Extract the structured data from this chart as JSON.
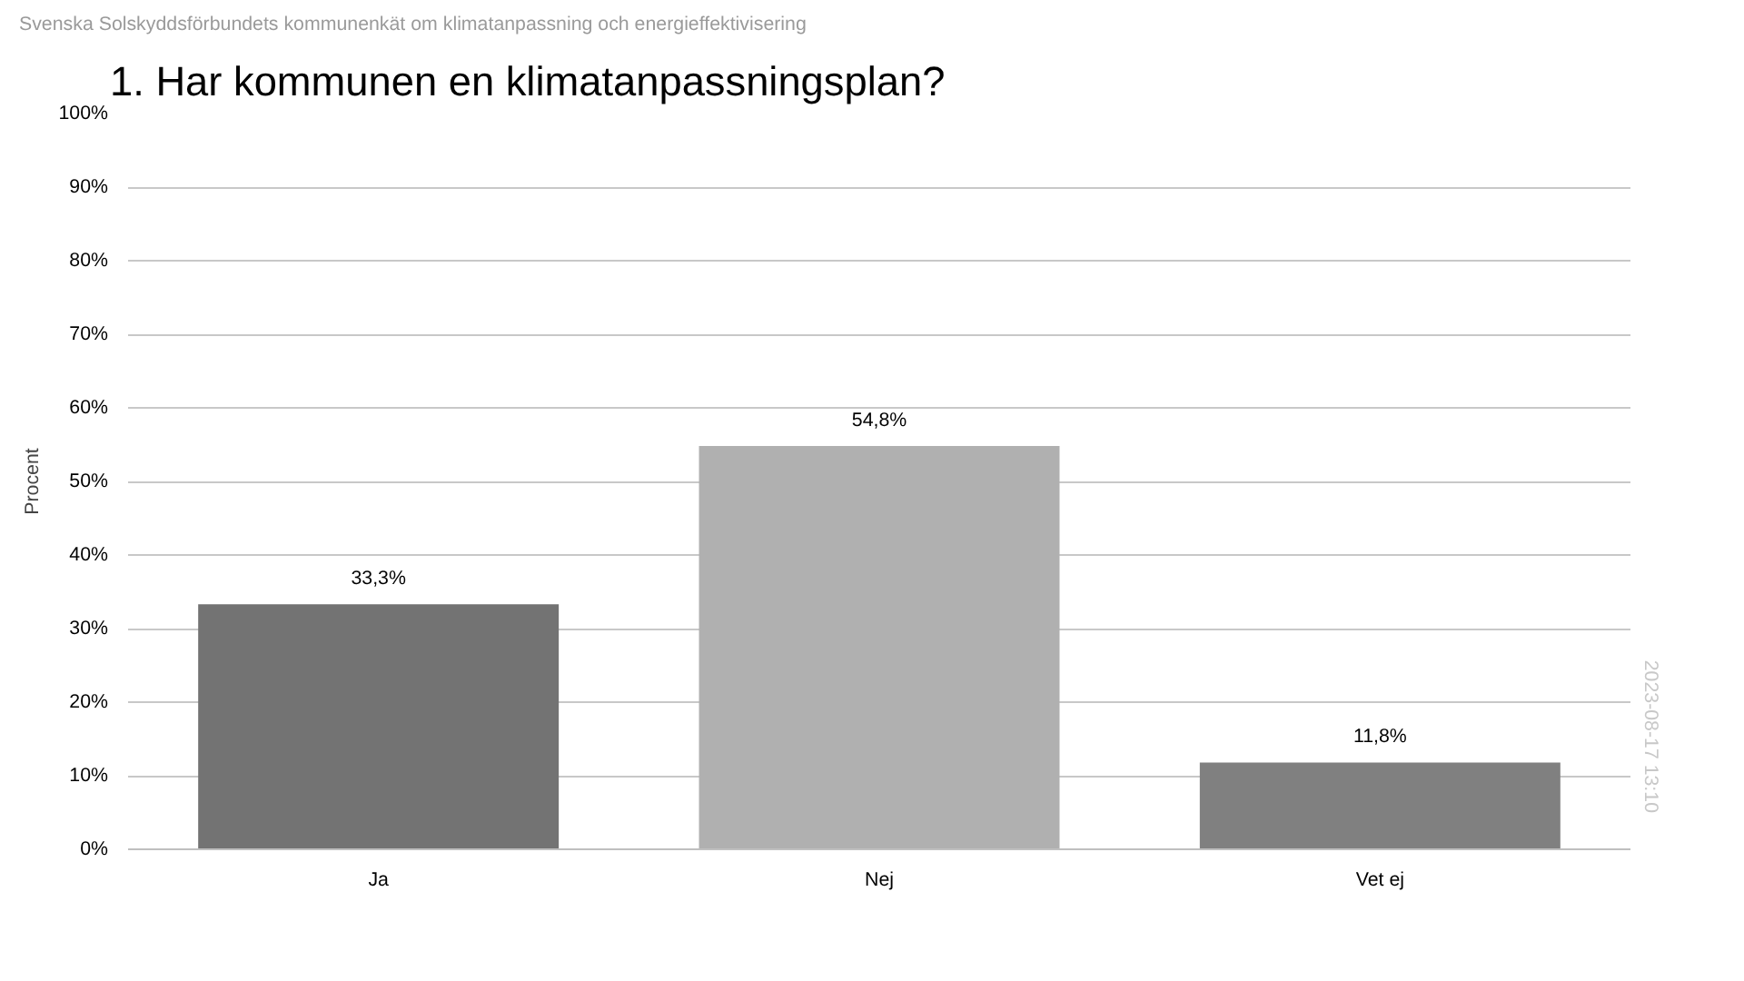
{
  "chart_data": {
    "type": "bar",
    "subtitle": "Svenska Solskyddsförbundets kommunenkät om klimatanpassning och energieffektivisering",
    "title": "1. Har kommunen en klimatanpassningsplan?",
    "ylabel": "Procent",
    "categories": [
      "Ja",
      "Nej",
      "Vet ej"
    ],
    "values": [
      33.3,
      54.8,
      11.8
    ],
    "colors": [
      "#737373",
      "#b0b0b0",
      "#808080"
    ],
    "value_labels": [
      "33,3%",
      "54,8%",
      "11,8%"
    ],
    "ylim": [
      0,
      100
    ],
    "yticks": [
      {
        "value": 0,
        "label": "0%"
      },
      {
        "value": 10,
        "label": "10%"
      },
      {
        "value": 20,
        "label": "20%"
      },
      {
        "value": 30,
        "label": "30%"
      },
      {
        "value": 40,
        "label": "40%"
      },
      {
        "value": 50,
        "label": "50%"
      },
      {
        "value": 60,
        "label": "60%"
      },
      {
        "value": 70,
        "label": "70%"
      },
      {
        "value": 80,
        "label": "80%"
      },
      {
        "value": 90,
        "label": "90%"
      },
      {
        "value": 100,
        "label": "100%"
      }
    ],
    "grid": "y",
    "annotations": [
      "2023-08-17 13:10"
    ]
  }
}
